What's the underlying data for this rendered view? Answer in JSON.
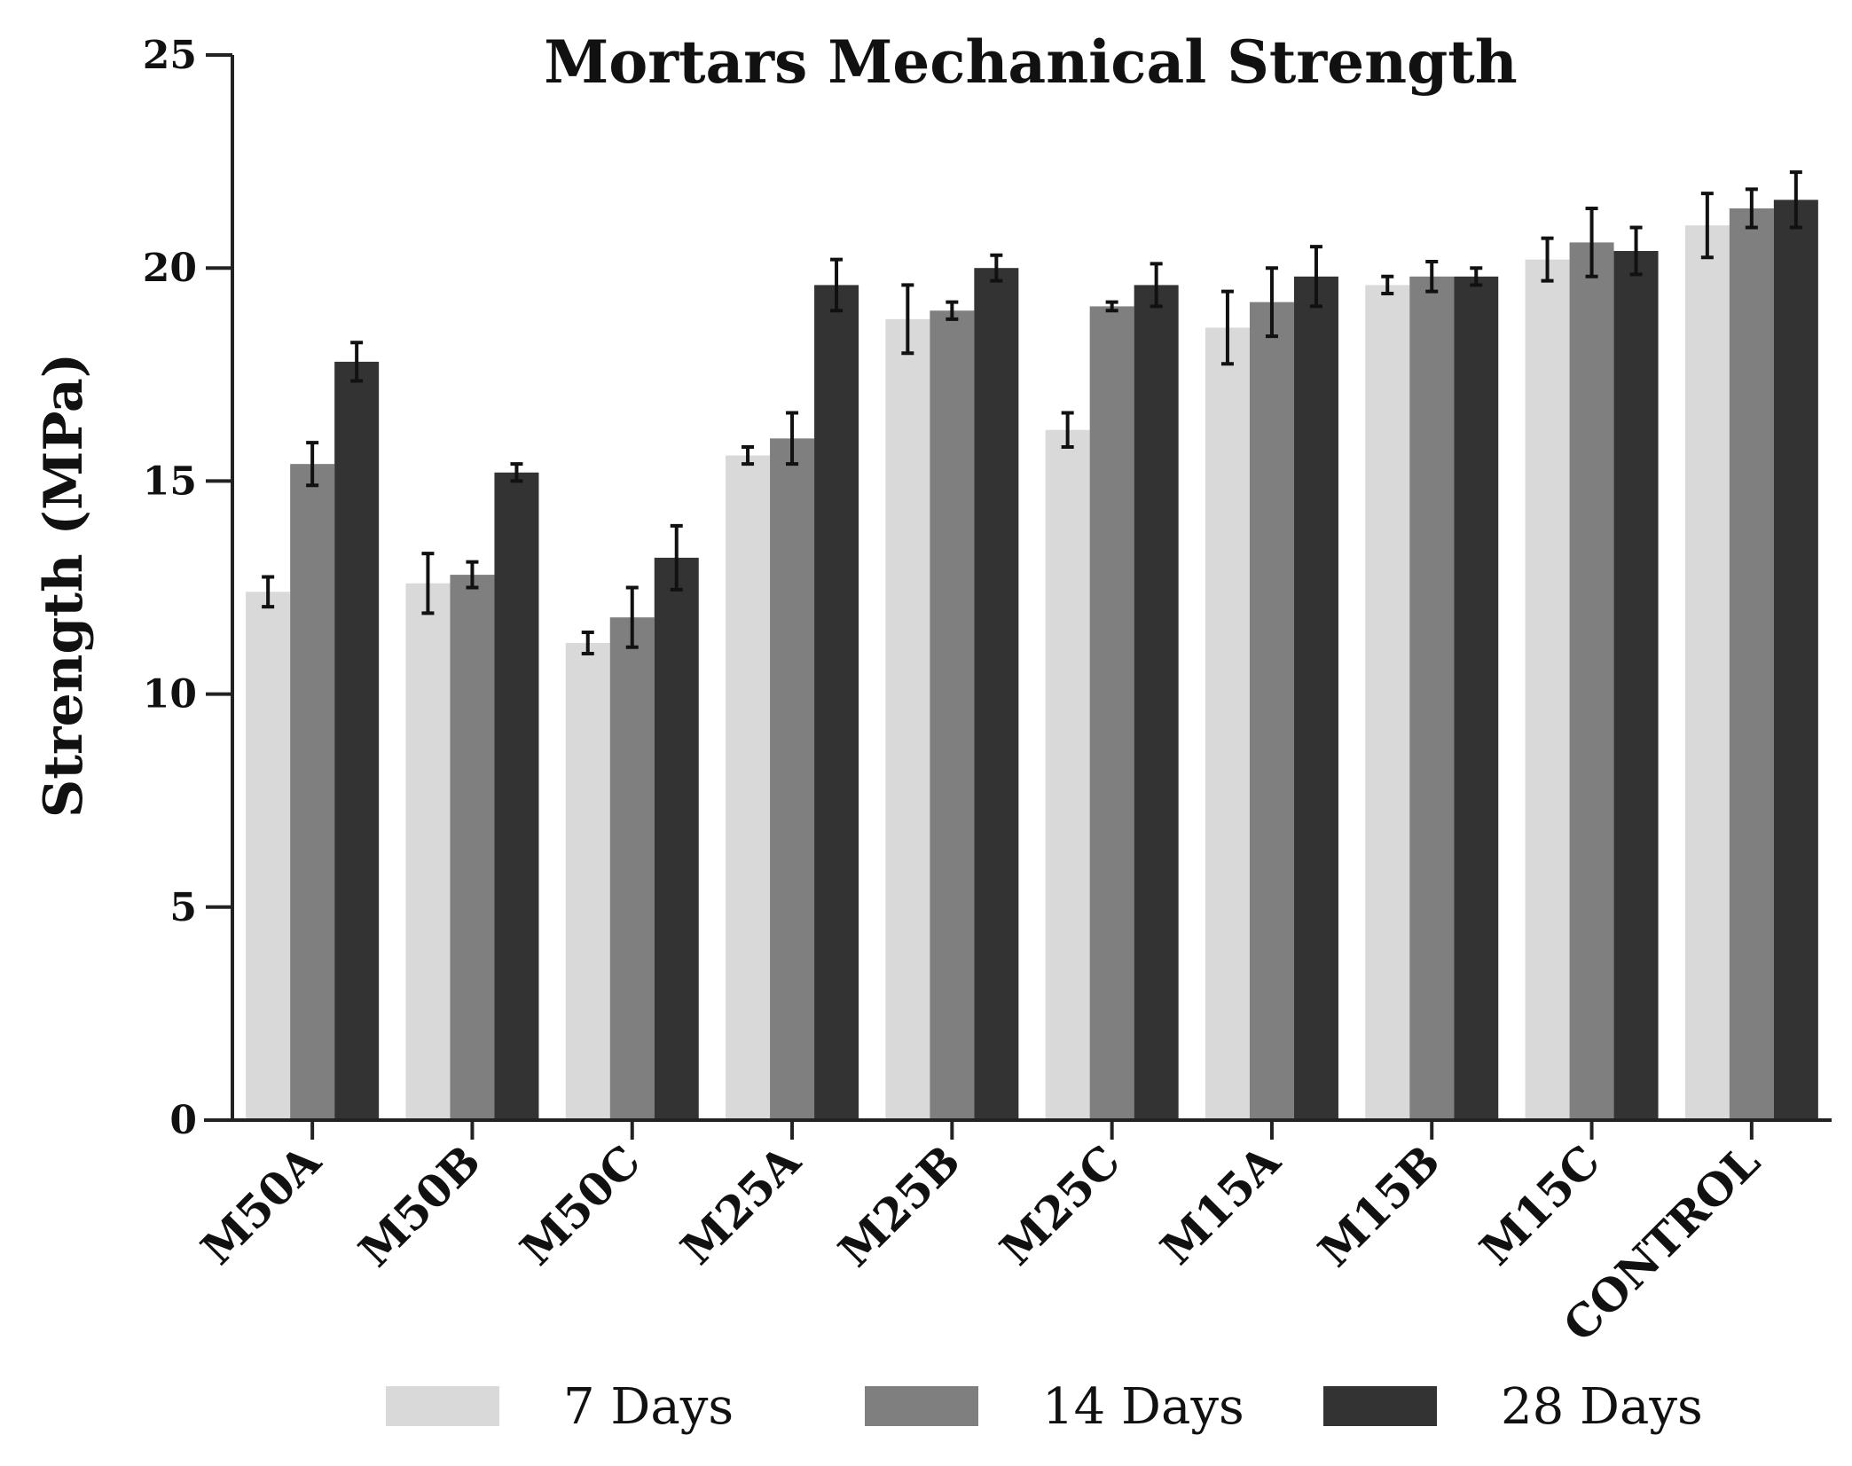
{
  "chart_data": {
    "type": "bar",
    "title": "Mortars Mechanical Strength",
    "xlabel": "",
    "ylabel": "Strength (MPa)",
    "ylim": [
      0,
      25
    ],
    "yticks": [
      0,
      5,
      10,
      15,
      20,
      25
    ],
    "grid": false,
    "legend_position": "bottom",
    "categories": [
      "M50A",
      "M50B",
      "M50C",
      "M25A",
      "M25B",
      "M25C",
      "M15A",
      "M15B",
      "M15C",
      "CONTROL"
    ],
    "series": [
      {
        "name": "7 Days",
        "color": "#d9d9d9",
        "values": [
          12.4,
          12.6,
          11.2,
          15.6,
          18.8,
          16.2,
          18.6,
          19.6,
          20.2,
          21.0
        ],
        "errors": [
          0.35,
          0.7,
          0.25,
          0.2,
          0.8,
          0.4,
          0.85,
          0.2,
          0.5,
          0.75
        ]
      },
      {
        "name": "14 Days",
        "color": "#7f7f7f",
        "values": [
          15.4,
          12.8,
          11.8,
          16.0,
          19.0,
          19.1,
          19.2,
          19.8,
          20.6,
          21.4
        ],
        "errors": [
          0.5,
          0.3,
          0.7,
          0.6,
          0.2,
          0.1,
          0.8,
          0.35,
          0.8,
          0.45
        ]
      },
      {
        "name": "28 Days",
        "color": "#333333",
        "values": [
          17.8,
          15.2,
          13.2,
          19.6,
          20.0,
          19.6,
          19.8,
          19.8,
          20.4,
          21.6
        ],
        "errors": [
          0.45,
          0.2,
          0.75,
          0.6,
          0.3,
          0.5,
          0.7,
          0.2,
          0.55,
          0.65
        ]
      }
    ]
  }
}
